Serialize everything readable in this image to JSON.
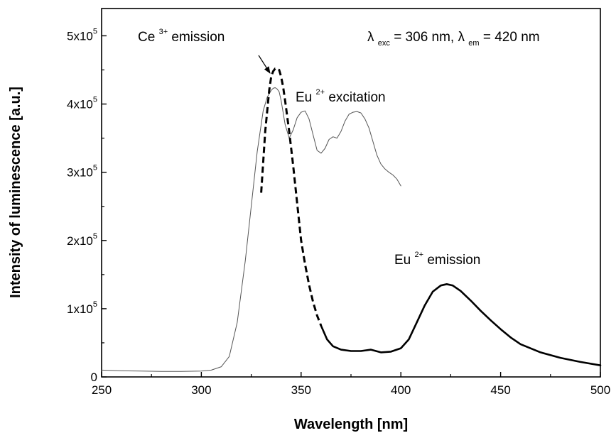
{
  "chart_data": {
    "type": "line",
    "xlabel": "Wavelength [nm]",
    "ylabel": "Intensity of luminescence [a.u.]",
    "xlim": [
      250,
      500
    ],
    "ylim": [
      0,
      540000
    ],
    "x_ticks": [
      250,
      300,
      350,
      400,
      450,
      500
    ],
    "x_tick_labels": [
      "250",
      "300",
      "350",
      "400",
      "450",
      "500"
    ],
    "y_ticks": [
      0,
      100000,
      200000,
      300000,
      400000,
      500000
    ],
    "y_tick_labels": [
      {
        "base": "0",
        "exp": ""
      },
      {
        "base": "1x10",
        "exp": "5"
      },
      {
        "base": "2x10",
        "exp": "5"
      },
      {
        "base": "3x10",
        "exp": "5"
      },
      {
        "base": "4x10",
        "exp": "5"
      },
      {
        "base": "5x10",
        "exp": "5"
      }
    ],
    "grid": false,
    "annotations": {
      "ce_emission": {
        "main": "Ce",
        "sup": "3+",
        "rest": " emission"
      },
      "eu_excitation": {
        "main": "Eu",
        "sup": "2+",
        "rest": " excitation"
      },
      "eu_emission": {
        "main": "Eu",
        "sup": "2+",
        "rest": " emission"
      },
      "conditions": {
        "lambda1": "λ",
        "sub1": "exc",
        "mid": " = 306 nm, ",
        "lambda2": "λ",
        "sub2": "em",
        "end": " = 420 nm"
      }
    },
    "series": [
      {
        "style": "thin-solid",
        "color": "#555555",
        "x": [
          250,
          260,
          270,
          280,
          290,
          300,
          305,
          310,
          314,
          318,
          322,
          325,
          328,
          331,
          333,
          335,
          336,
          337,
          338,
          339,
          340,
          342,
          344,
          346,
          348,
          350,
          352,
          354,
          356,
          358,
          360,
          362,
          364,
          366,
          368,
          370,
          372,
          374,
          376,
          378,
          380,
          382,
          384,
          386,
          388,
          390,
          392,
          394,
          396,
          398,
          400
        ],
        "y": [
          10000,
          9000,
          8500,
          8000,
          8000,
          8500,
          10000,
          15000,
          30000,
          80000,
          170000,
          250000,
          330000,
          390000,
          410000,
          420000,
          423000,
          424000,
          422000,
          418000,
          405000,
          370000,
          350000,
          362000,
          380000,
          388000,
          390000,
          378000,
          355000,
          332000,
          328000,
          335000,
          348000,
          352000,
          350000,
          360000,
          375000,
          385000,
          388000,
          389000,
          387000,
          378000,
          365000,
          345000,
          325000,
          312000,
          305000,
          300000,
          296000,
          290000,
          280000
        ]
      },
      {
        "style": "thick-dashed",
        "color": "#000000",
        "x": [
          330,
          332,
          334,
          335,
          336,
          337,
          338,
          339,
          340,
          341,
          342,
          344,
          346,
          348,
          350,
          352,
          354,
          356,
          358,
          360
        ],
        "y": [
          270000,
          360000,
          420000,
          440000,
          448000,
          452000,
          452000,
          450000,
          440000,
          425000,
          405000,
          360000,
          310000,
          255000,
          200000,
          165000,
          135000,
          110000,
          90000,
          75000
        ]
      },
      {
        "style": "thick-solid",
        "color": "#000000",
        "x": [
          360,
          363,
          366,
          370,
          375,
          380,
          385,
          390,
          395,
          400,
          404,
          408,
          412,
          416,
          420,
          423,
          426,
          430,
          435,
          440,
          445,
          450,
          455,
          460,
          470,
          480,
          490,
          500
        ],
        "y": [
          75000,
          55000,
          45000,
          40000,
          38000,
          38000,
          40000,
          36000,
          37000,
          42000,
          55000,
          80000,
          105000,
          125000,
          134000,
          136000,
          134000,
          126000,
          112000,
          97000,
          83000,
          70000,
          58000,
          48000,
          36000,
          28000,
          22000,
          17000
        ]
      }
    ]
  }
}
